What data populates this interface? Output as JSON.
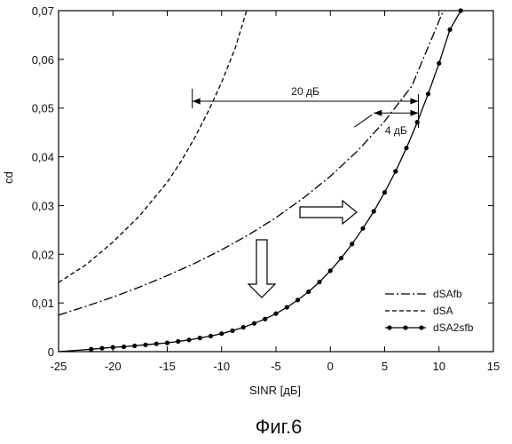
{
  "chart_data": {
    "type": "line",
    "caption": "Фиг.6",
    "xlabel": "SINR [дБ]",
    "ylabel": "cd",
    "xlim": [
      -25,
      15
    ],
    "ylim": [
      0,
      0.07
    ],
    "xticks": [
      -25,
      -20,
      -15,
      -10,
      -5,
      0,
      5,
      10,
      15
    ],
    "xtick_labels": [
      "-25",
      "-20",
      "-15",
      "-10",
      "-5",
      "0",
      "5",
      "10",
      "15"
    ],
    "yticks": [
      0,
      0.01,
      0.02,
      0.03,
      0.04,
      0.05,
      0.06,
      0.07
    ],
    "ytick_labels": [
      "0",
      "0,01",
      "0,02",
      "0,03",
      "0,04",
      "0,05",
      "0,06",
      "0,07"
    ],
    "grid": false,
    "legend_position": "bottom-right",
    "series": [
      {
        "name": "dSAfb",
        "style": "dash-dot",
        "x": [
          -25,
          -22.5,
          -20,
          -17.5,
          -15,
          -12.5,
          -10,
          -7.5,
          -5,
          -2.5,
          0,
          2.5,
          5,
          7.5,
          10.4
        ],
        "y": [
          0.0075,
          0.0093,
          0.0112,
          0.0133,
          0.0156,
          0.0181,
          0.0209,
          0.024,
          0.0275,
          0.0315,
          0.036,
          0.0412,
          0.0473,
          0.0545,
          0.07
        ]
      },
      {
        "name": "dSA",
        "style": "dashed",
        "x": [
          -25,
          -22.5,
          -20,
          -17.5,
          -15,
          -13.75,
          -12.5,
          -11.25,
          -10,
          -8.75,
          -7.7
        ],
        "y": [
          0.0142,
          0.0178,
          0.0225,
          0.028,
          0.0348,
          0.039,
          0.0438,
          0.0492,
          0.0553,
          0.0623,
          0.07
        ]
      },
      {
        "name": "dSA2sfb",
        "style": "solid-markers",
        "x": [
          -25,
          -22,
          -21,
          -20,
          -19,
          -18,
          -17,
          -16,
          -15,
          -14,
          -13,
          -12,
          -11,
          -10,
          -9,
          -8,
          -7,
          -6,
          -5,
          -4,
          -3,
          -2,
          -1,
          0,
          1,
          2,
          3,
          4,
          5,
          6,
          7,
          8,
          9,
          10,
          11,
          12
        ],
        "y": [
          0,
          0.0005,
          0.0007,
          0.0009,
          0.001,
          0.0012,
          0.0014,
          0.0016,
          0.0018,
          0.0021,
          0.0024,
          0.0028,
          0.0032,
          0.0037,
          0.0043,
          0.005,
          0.0058,
          0.0067,
          0.0078,
          0.0091,
          0.0106,
          0.0123,
          0.0143,
          0.0166,
          0.0192,
          0.0221,
          0.0253,
          0.0288,
          0.0327,
          0.037,
          0.0418,
          0.0471,
          0.0529,
          0.0592,
          0.0661,
          0.07
        ]
      }
    ],
    "annotations": {
      "gap_20": {
        "text": "20 дБ",
        "x_from": -12.7,
        "x_to": 8.1,
        "y": 0.0514
      },
      "gap_4": {
        "text": "4 дБ",
        "x_from": 4.0,
        "x_to": 8.1,
        "y": 0.049
      }
    }
  }
}
